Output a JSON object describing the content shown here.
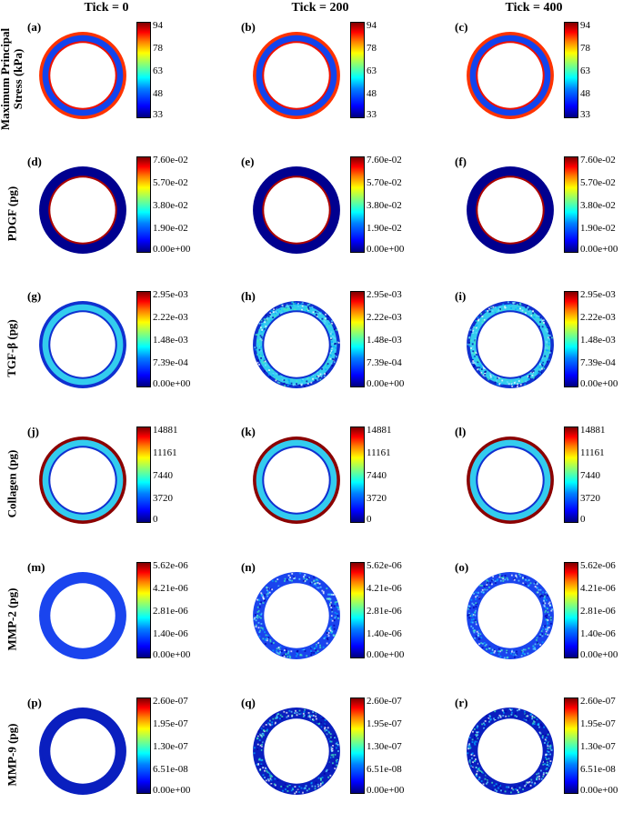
{
  "columns": [
    "Tick = 0",
    "Tick = 200",
    "Tick = 400"
  ],
  "rows": [
    {
      "label": "Maximum Principal Stress (kPa)",
      "label_lines": [
        "Maximum Principal",
        "Stress (kPa)"
      ],
      "ticks": [
        "94",
        "78",
        "63",
        "48",
        "33"
      ],
      "letters": [
        "(a)",
        "(b)",
        "(c)"
      ],
      "ring": {
        "outer": "#ff3300",
        "band": "#1144ee",
        "inner": "#ee1100",
        "speckle": [
          false,
          false,
          false
        ]
      }
    },
    {
      "label": "PDGF (pg)",
      "label_lines": [
        "PDGF (pg)"
      ],
      "ticks": [
        "7.60e-02",
        "5.70e-02",
        "3.80e-02",
        "1.90e-02",
        "0.00e+00"
      ],
      "letters": [
        "(d)",
        "(e)",
        "(f)"
      ],
      "ring": {
        "outer": "#00008f",
        "band": "#00008f",
        "inner": "#aa0000",
        "speckle": [
          false,
          false,
          false
        ]
      }
    },
    {
      "label": "TGF-β (pg)",
      "label_lines": [
        "TGF-β (pg)"
      ],
      "ticks": [
        "2.95e-03",
        "2.22e-03",
        "1.48e-03",
        "7.39e-04",
        "0.00e+00"
      ],
      "letters": [
        "(g)",
        "(h)",
        "(i)"
      ],
      "ring": {
        "outer": "#1030d0",
        "band": "#33ccee",
        "inner": "#1030d0",
        "speckle": [
          false,
          true,
          true
        ]
      }
    },
    {
      "label": "Collagen (pg)",
      "label_lines": [
        "Collagen (pg)"
      ],
      "ticks": [
        "14881",
        "11161",
        "7440",
        "3720",
        "0"
      ],
      "letters": [
        "(j)",
        "(k)",
        "(l)"
      ],
      "ring": {
        "outer": "#8b0000",
        "band": "#33ccee",
        "inner": "#1030d0",
        "speckle": [
          false,
          false,
          false
        ]
      }
    },
    {
      "label": "MMP-2 (pg)",
      "label_lines": [
        "MMP-2 (pg)"
      ],
      "ticks": [
        "5.62e-06",
        "4.21e-06",
        "2.81e-06",
        "1.40e-06",
        "0.00e+00"
      ],
      "letters": [
        "(m)",
        "(n)",
        "(o)"
      ],
      "ring": {
        "outer": "#1a44ee",
        "band": "#1a44ee",
        "inner": "#1a44ee",
        "speckle": [
          false,
          true,
          true
        ]
      }
    },
    {
      "label": "MMP-9 (pg)",
      "label_lines": [
        "MMP-9 (pg)"
      ],
      "ticks": [
        "2.60e-07",
        "1.95e-07",
        "1.30e-07",
        "6.51e-08",
        "0.00e+00"
      ],
      "letters": [
        "(p)",
        "(q)",
        "(r)"
      ],
      "ring": {
        "outer": "#0a1fbf",
        "band": "#0a1fbf",
        "inner": "#0a1fbf",
        "speckle": [
          false,
          true,
          true
        ]
      }
    }
  ]
}
